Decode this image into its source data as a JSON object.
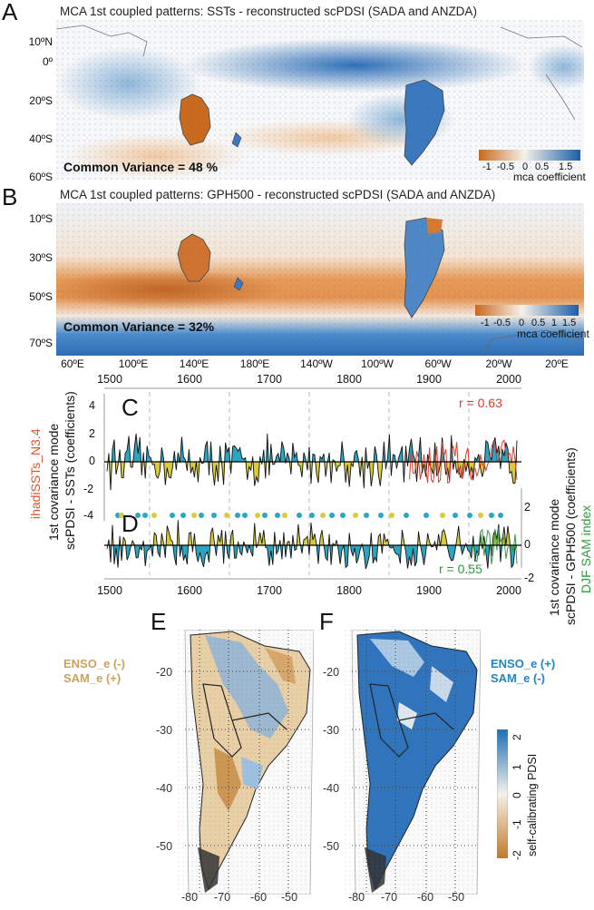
{
  "panels": {
    "a": {
      "letter": "A",
      "title": "MCA 1st coupled patterns: SSTs - reconstructed scPDSI (SADA and ANZDA)",
      "lat_labels": [
        "10ºN",
        "0º",
        "20ºS",
        "40ºS",
        "60ºS"
      ],
      "common_variance": "Common Variance = 48 %",
      "colorbar_ticks": [
        "-1",
        "-0.5",
        "0",
        "0.5",
        "1.5"
      ],
      "colorbar_label": "mca coefficient"
    },
    "b": {
      "letter": "B",
      "title": "MCA 1st coupled patterns: GPH500 - reconstructed scPDSI (SADA and ANZDA)",
      "lat_labels": [
        "10ºS",
        "30ºS",
        "50ºS",
        "70ºS"
      ],
      "common_variance": "Common Variance = 32%",
      "colorbar_ticks": [
        "-1",
        "-0.5",
        "0",
        "0.5",
        "1",
        "1.5"
      ],
      "colorbar_label": "mca coefficient",
      "lon_labels": [
        "60ºE",
        "100ºE",
        "140ºE",
        "180ºE",
        "140ºW",
        "100ºW",
        "60ºW",
        "20ºW",
        "20ºE"
      ]
    },
    "c": {
      "letter": "C",
      "top_years": [
        "1500",
        "1600",
        "1700",
        "1800",
        "1900",
        "2000"
      ],
      "yticks": [
        "4",
        "2",
        "0",
        "-2",
        "-4"
      ],
      "ylabel_line1": "1st covariance mode",
      "ylabel_line2": "scPDSI - SSTs (coefficients)",
      "right_series_label": "ihadiSSTs_N3.4",
      "r_value": "r = 0.63"
    },
    "d": {
      "letter": "D",
      "bottom_years": [
        "1500",
        "1600",
        "1700",
        "1800",
        "1900",
        "2000"
      ],
      "yticks": [
        "2",
        "0",
        "-2"
      ],
      "ylabel_line1": "1st covariance mode",
      "ylabel_line2": "scPDSI - GPH500 (coefficients)",
      "right_series_label": "DJF SAM index",
      "r_value": "r = 0.55"
    },
    "e": {
      "letter": "E",
      "label_line1": "ENSO_e (-)",
      "label_line2": "SAM_e (+)",
      "lat_labels": [
        "-20",
        "-30",
        "-40",
        "-50"
      ],
      "lon_labels": [
        "-80",
        "-70",
        "-60",
        "-50"
      ]
    },
    "f": {
      "letter": "F",
      "label_line1": "ENSO_e (+)",
      "label_line2": "SAM_e (-)",
      "lat_labels": [
        "-20",
        "-30",
        "-40",
        "-50"
      ],
      "lon_labels": [
        "-80",
        "-70",
        "-60",
        "-50"
      ],
      "colorbar_ticks": [
        "2",
        "1",
        "0",
        "-1",
        "-2"
      ],
      "colorbar_label": "self-calibrating PDSI"
    }
  },
  "colors": {
    "orange": "#d7772a",
    "blue": "#1c6fb5",
    "teal": "#2aa5c2",
    "yellow": "#d9cc3a",
    "red": "#e23a2e",
    "green": "#2f9a3c",
    "brown_label": "#caa35a",
    "blue_label": "#1f86c6"
  }
}
